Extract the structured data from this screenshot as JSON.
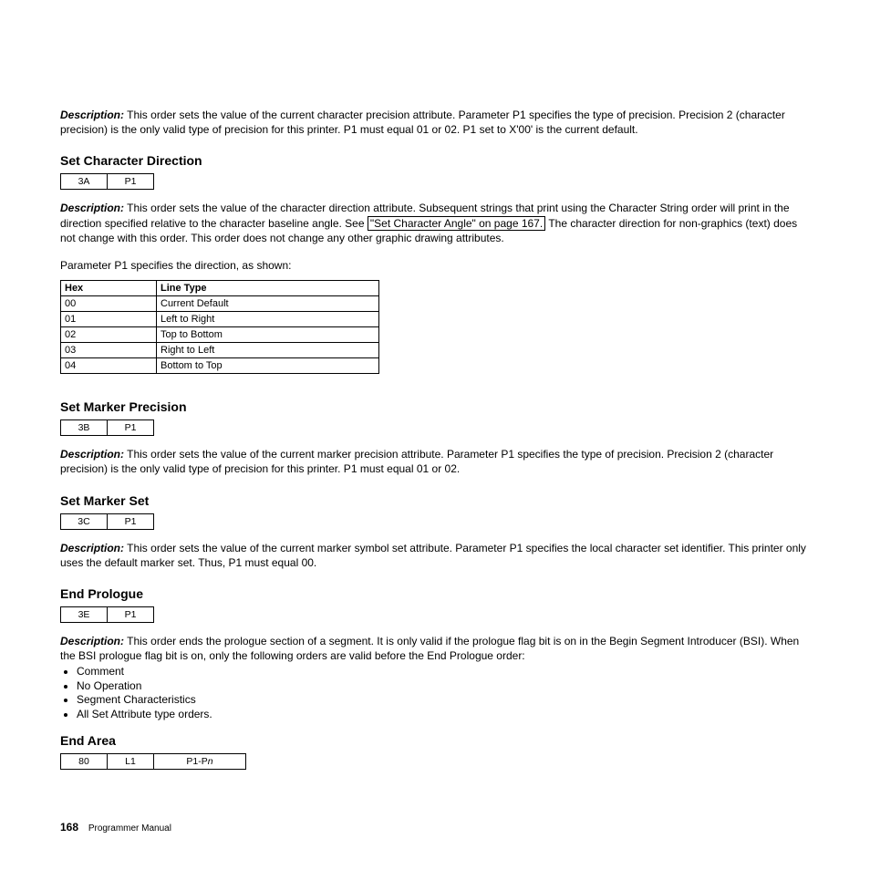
{
  "labels": {
    "description": "Description:"
  },
  "intro": {
    "desc": "This order sets the value of the current character precision attribute. Parameter P1 specifies the type of precision. Precision 2 (character precision) is the only valid type of precision for this printer. P1 must equal 01 or 02. P1 set to X'00' is the current default."
  },
  "charDirection": {
    "title": "Set Character Direction",
    "mini": {
      "hex": "3A",
      "p": "P1"
    },
    "desc1": "This order sets the value of the character direction attribute. Subsequent strings that print using the Character String order will print in the direction specified relative to the character baseline angle. See ",
    "link": "\"Set Character Angle\" on page 167.",
    "desc2": " The character direction for non-graphics (text) does not change with this order. This order does not change any other graphic drawing attributes.",
    "paramLine": "Parameter P1 specifies the direction, as shown:",
    "table": {
      "headers": [
        "Hex",
        "Line Type"
      ],
      "rows": [
        [
          "00",
          "Current Default"
        ],
        [
          "01",
          "Left to Right"
        ],
        [
          "02",
          "Top to Bottom"
        ],
        [
          "03",
          "Right to Left"
        ],
        [
          "04",
          "Bottom to Top"
        ]
      ]
    }
  },
  "markerPrecision": {
    "title": "Set Marker Precision",
    "mini": {
      "hex": "3B",
      "p": "P1"
    },
    "desc": "This order sets the value of the current marker precision attribute. Parameter P1 specifies the type of precision. Precision 2 (character precision) is the only valid type of precision for this printer. P1 must equal 01 or 02."
  },
  "markerSet": {
    "title": "Set Marker Set",
    "mini": {
      "hex": "3C",
      "p": "P1"
    },
    "desc": "This order sets the value of the current marker symbol set attribute. Parameter P1 specifies the local character set identifier. This printer only uses the default marker set. Thus, P1 must equal 00."
  },
  "endPrologue": {
    "title": "End Prologue",
    "mini": {
      "hex": "3E",
      "p": "P1"
    },
    "desc": "This order ends the prologue section of a segment. It is only valid if the prologue flag bit is on in the Begin Segment Introducer (BSI). When the BSI prologue flag bit is on, only the following orders are valid before the End Prologue order:",
    "bullets": [
      "Comment",
      "No Operation",
      "Segment Characteristics",
      "All Set Attribute type orders."
    ]
  },
  "endArea": {
    "title": "End Area",
    "mini": {
      "hex": "80",
      "l": "L1",
      "p_prefix": "P1-P",
      "p_n": "n"
    }
  },
  "footer": {
    "page": "168",
    "manual": "Programmer Manual"
  }
}
